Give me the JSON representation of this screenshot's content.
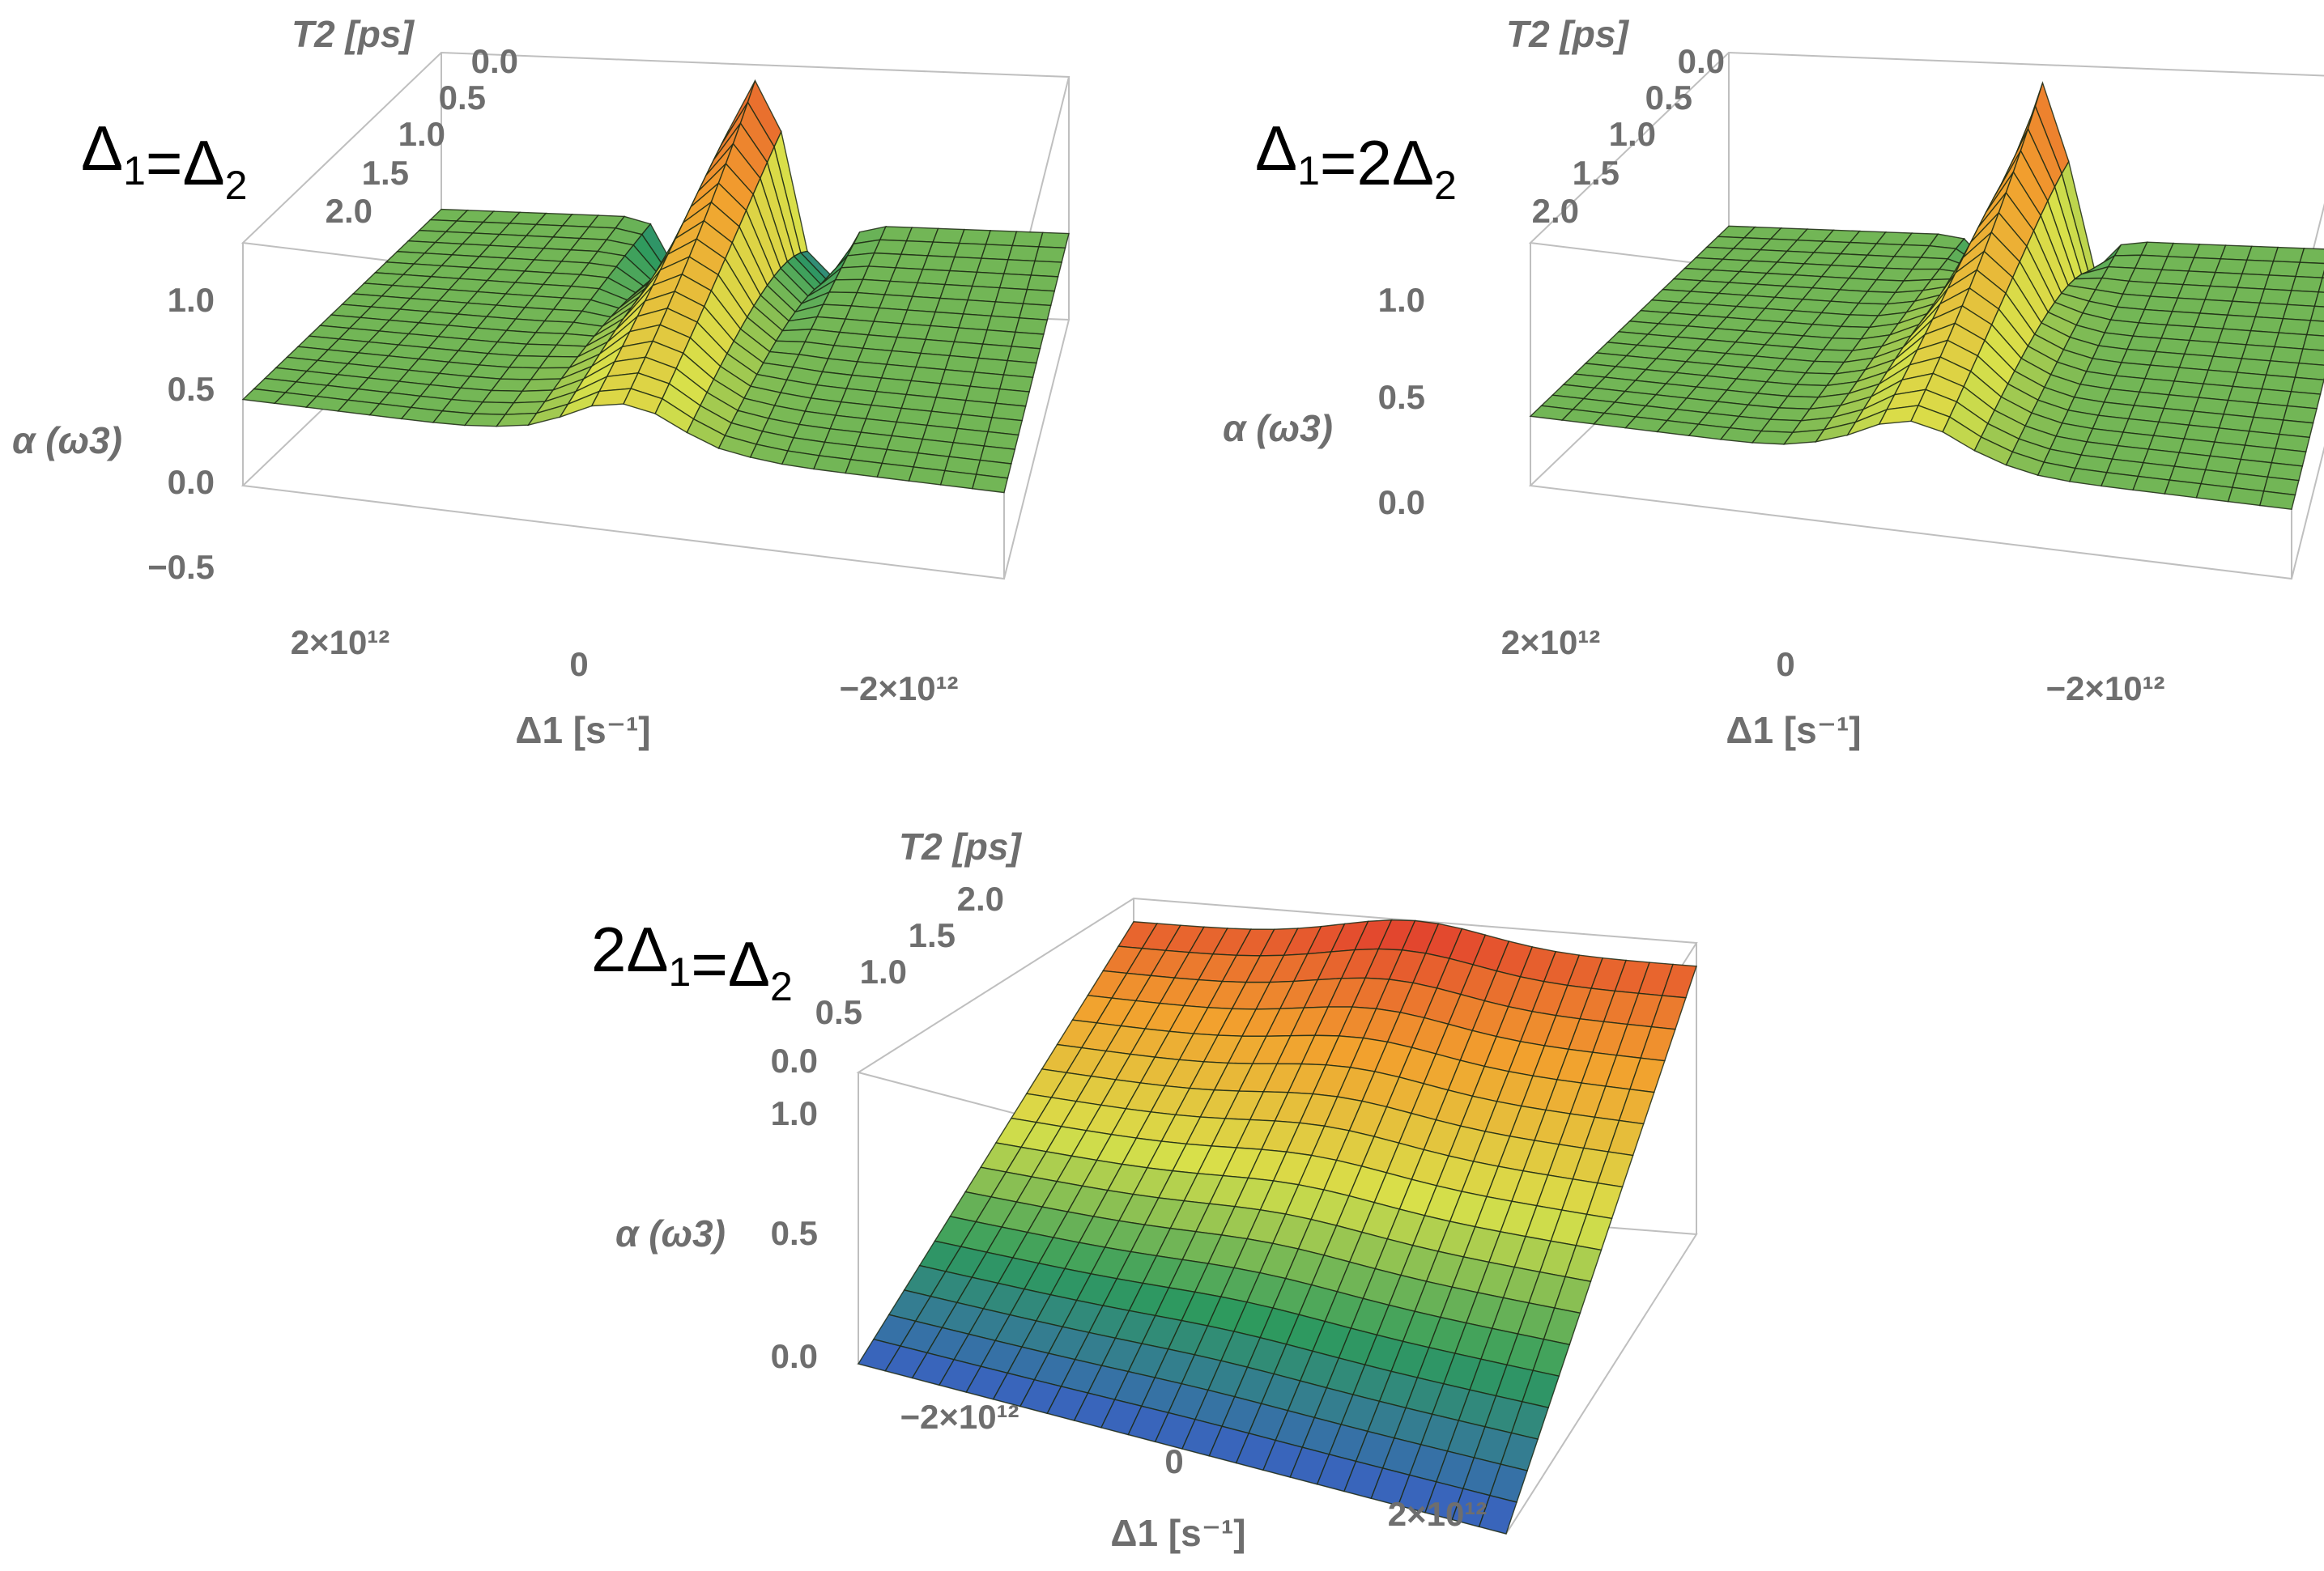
{
  "chart_data": [
    {
      "type": "surface3d",
      "title_main": "Δ",
      "title_rest": "=Δ",
      "title_parts": [
        "",
        "Δ",
        "1",
        "=Δ",
        "2"
      ],
      "xlabel": "Δ1 [s⁻¹]",
      "ylabel": "T2 [ps]",
      "zlabel": "α (ω3)",
      "x_ticks": [
        "2×10¹²",
        "0",
        "−2×10¹²"
      ],
      "y_ticks": [
        "0.0",
        "0.5",
        "1.0",
        "1.5",
        "2.0"
      ],
      "z_ticks": [
        "1.0",
        "0.5",
        "0.0",
        "−0.5"
      ],
      "xlim": [
        -3000000000000.0,
        3000000000000.0
      ],
      "ylim": [
        0,
        2.2
      ],
      "zlim": [
        -0.55,
        1.0
      ],
      "surface": "two dips near Δ1 = ±0.6×10¹² (minimum ≈ −0.5) around a central ridge reaching ≈ 0.9 at Δ1 = 0, T2 = 0; flat ≈ 0 elsewhere",
      "colormap": [
        "#3a5fc6",
        "#2e9a5e",
        "#d8e04a",
        "#f2a12e",
        "#e03a2e"
      ]
    },
    {
      "type": "surface3d",
      "title_parts": [
        "",
        "Δ",
        "1",
        "=2Δ",
        "2"
      ],
      "xlabel": "Δ1 [s⁻¹]",
      "ylabel": "T2 [ps]",
      "zlabel": "α (ω3)",
      "x_ticks": [
        "2×10¹²",
        "0",
        "−2×10¹²"
      ],
      "y_ticks": [
        "0.0",
        "0.5",
        "1.0",
        "1.5",
        "2.0"
      ],
      "z_ticks": [
        "1.0",
        "0.5",
        "0.0"
      ],
      "xlim": [
        -3000000000000.0,
        3000000000000.0
      ],
      "ylim": [
        0,
        2.2
      ],
      "zlim": [
        -0.4,
        1.0
      ],
      "surface": "narrower pair of dips near Δ1 ≈ ±0.45×10¹² (minimum ≈ −0.35) around a central ridge reaching ≈ 0.9 at Δ1 = 0, T2 = 0",
      "colormap": [
        "#3a5fc6",
        "#2e9a5e",
        "#d8e04a",
        "#f2a12e",
        "#e03a2e"
      ]
    },
    {
      "type": "surface3d",
      "title_parts": [
        "2",
        "Δ",
        "1",
        "=Δ",
        "2"
      ],
      "xlabel": "Δ1 [s⁻¹]",
      "ylabel": "T2 [ps]",
      "zlabel": "α (ω3)",
      "x_ticks": [
        "−2×10¹²",
        "0",
        "2×10¹²"
      ],
      "y_ticks": [
        "0.0",
        "0.5",
        "1.0",
        "1.5",
        "2.0"
      ],
      "z_ticks": [
        "1.0",
        "0.5",
        "0.0"
      ],
      "xlim": [
        -3000000000000.0,
        3000000000000.0
      ],
      "ylim": [
        0,
        2.2
      ],
      "zlim": [
        0,
        1.0
      ],
      "surface": "monotonic ramp in T2 from 0 at T2 = 0 to ≈ 1.0 at T2 = 2.0 with a small bump near Δ1 = 0 at large T2",
      "colormap": [
        "#3a5fc6",
        "#2e9a5e",
        "#d8e04a",
        "#f2a12e",
        "#e03a2e"
      ]
    }
  ]
}
